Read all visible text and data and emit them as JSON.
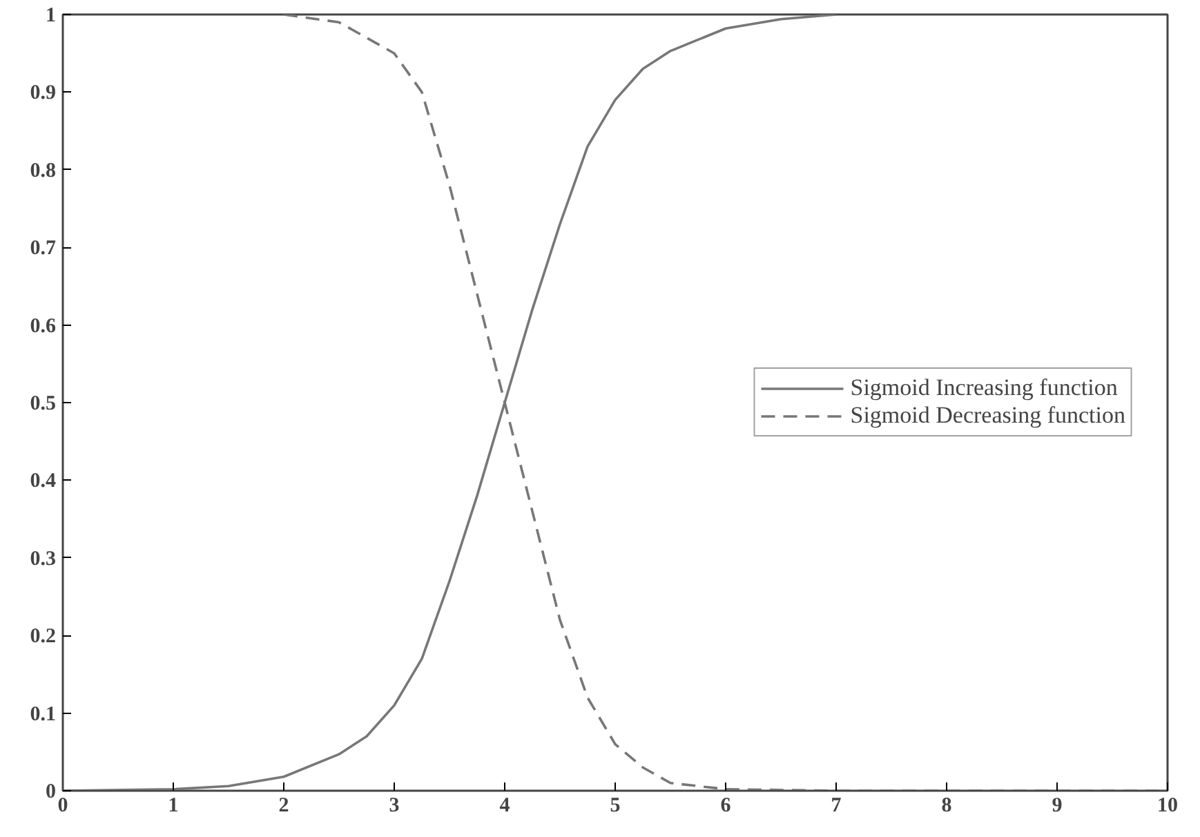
{
  "chart_data": {
    "type": "line",
    "x": [
      0,
      1,
      1.5,
      2,
      2.5,
      2.75,
      3,
      3.25,
      3.5,
      3.75,
      4,
      4.25,
      4.5,
      4.75,
      5,
      5.25,
      5.5,
      6,
      6.5,
      7
    ],
    "series": [
      {
        "name": "Sigmoid Increasing function",
        "color": "#777777",
        "line_style": "solid",
        "values": [
          0,
          0.002,
          0.006,
          0.018,
          0.047,
          0.07,
          0.11,
          0.17,
          0.27,
          0.38,
          0.5,
          0.62,
          0.73,
          0.83,
          0.89,
          0.93,
          0.953,
          0.982,
          0.994,
          1
        ]
      },
      {
        "name": "Sigmoid Decreasing function",
        "color": "#777777",
        "line_style": "dashed",
        "x": [
          2,
          2.5,
          3,
          3.25,
          3.5,
          3.75,
          4,
          4.25,
          4.5,
          4.75,
          5,
          5.25,
          5.5,
          6,
          7,
          10
        ],
        "values": [
          1,
          0.99,
          0.95,
          0.9,
          0.78,
          0.64,
          0.5,
          0.36,
          0.22,
          0.12,
          0.06,
          0.03,
          0.01,
          0.002,
          0,
          0
        ]
      }
    ],
    "xlim": [
      0,
      10
    ],
    "ylim": [
      0,
      1
    ],
    "xticks": [
      0,
      1,
      2,
      3,
      4,
      5,
      6,
      7,
      8,
      9,
      10
    ],
    "yticks": [
      0,
      0.1,
      0.2,
      0.3,
      0.4,
      0.5,
      0.6,
      0.7,
      0.8,
      0.9,
      1
    ],
    "grid": false,
    "legend": "right",
    "marker": "none"
  }
}
